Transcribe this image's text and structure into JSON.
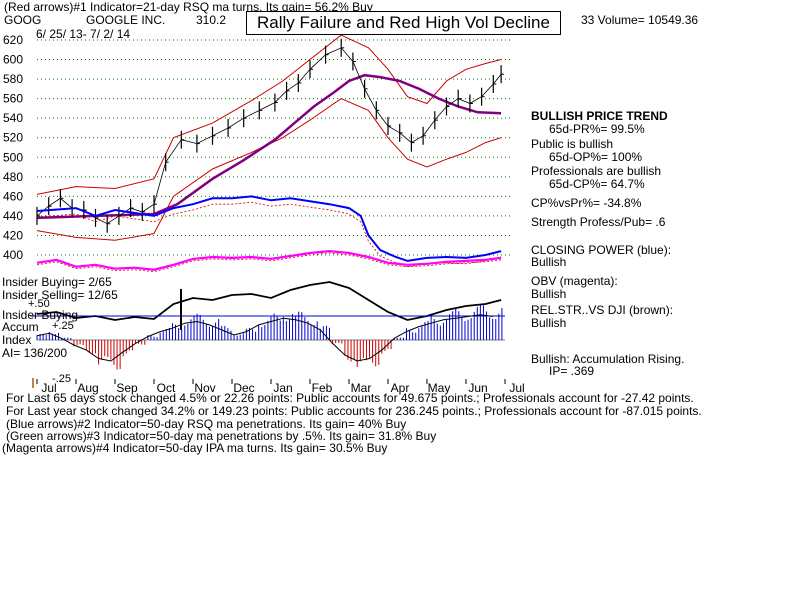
{
  "header": {
    "line1": "(Red arrows)#1 Indicator=21-day RSQ ma turns. Its gain= 56.2% Buy",
    "ticker": "GOOG",
    "company": "GOOGLE INC.",
    "price": "310.2",
    "date_range": "6/ 25/ 13- 7/ 2/ 14",
    "volume_text": "33 Volume= 10549.36",
    "title": "Rally Failure and Red High Vol Decline"
  },
  "right_panel": {
    "trend_title": "BULLISH PRICE TREND",
    "trend_pr": "65d-PR%= 99.5%",
    "public_title": "Public is bullish",
    "public_op": "65d-OP%= 100%",
    "pros_title": "Professionals are bullish",
    "pros_cp": "65d-CP%= 64.7%",
    "cpvspr": "CP%vsPr%= -34.8%",
    "strength": "Strength Profess/Pub= .6",
    "closing_power_title": "CLOSING POWER (blue):",
    "closing_power_val": "Bullish",
    "obv_title": "OBV (magenta):",
    "obv_val": "Bullish",
    "relstr_title": "REL.STR..VS DJI (brown):",
    "relstr_val": "Bullish",
    "accum_title": "Bullish: Accumulation Rising.",
    "accum_ip": "IP= .369"
  },
  "left_labels": {
    "insider_buying": "Insider Buying= 2/65",
    "insider_selling": "Insider Selling= 12/65",
    "insider_buying2": "Insider Buying",
    "accum": "Accum",
    "plus25": "+.25",
    "plus50": "+.50",
    "index": "Index",
    "ai": "AI= 136/200",
    "minus25": "-.25"
  },
  "footer": {
    "line1": "For Last 65 days stock changed 4.5% or 22.26 points: Public accounts for 49.675 points.; Professionals account for -27.42 points.",
    "line2": "For Last year stock changed 34.2% or 149.23 points: Public accounts for 236.245 points.; Professionals account for -87.015 points.",
    "line3": "(Blue arrows)#2 Indicator=50-day RSQ ma penetrations. Its gain= 40% Buy",
    "line4": "(Green arrows)#3 Indicator=50-day ma penetrations by .5%. Its gain= 31.8% Buy",
    "line5": "(Magenta arrows)#4 Indicator=50-day IPA ma turns. Its gain= 30.5% Buy"
  },
  "colors": {
    "price_bars": "#000000",
    "band": "#cc0000",
    "ma": "#800080",
    "closing_power": "#0000ff",
    "obv": "#ff00ff",
    "relstr": "#000000",
    "accum_pos": "#0000cc",
    "accum_neg": "#cc0000",
    "grid": "#008000"
  },
  "chart_data": {
    "type": "line",
    "title": "Rally Failure and Red High Vol Decline",
    "ylim": [
      380,
      620
    ],
    "yticks": [
      620,
      600,
      580,
      560,
      540,
      520,
      500,
      480,
      460,
      440,
      420,
      400
    ],
    "ytick_labels": [
      "620",
      "600",
      "580",
      "560",
      "540",
      "520",
      "500",
      "480",
      "460",
      "440",
      "420",
      "400"
    ],
    "months": [
      "Jul",
      "Aug",
      "Sep",
      "Oct",
      "Nov",
      "Dec",
      "Jan",
      "Feb",
      "Mar",
      "Apr",
      "May",
      "Jun",
      "Jul"
    ],
    "month_index": [
      0,
      1,
      2,
      3,
      4,
      5,
      6,
      7,
      8,
      9,
      10,
      11,
      12
    ],
    "price": [
      [
        0,
        440
      ],
      [
        0.3,
        450
      ],
      [
        0.6,
        458
      ],
      [
        0.9,
        448
      ],
      [
        1.2,
        446
      ],
      [
        1.5,
        438
      ],
      [
        1.8,
        432
      ],
      [
        2.1,
        440
      ],
      [
        2.4,
        448
      ],
      [
        2.7,
        444
      ],
      [
        3.0,
        452
      ],
      [
        3.3,
        495
      ],
      [
        3.7,
        518
      ],
      [
        4.1,
        514
      ],
      [
        4.5,
        522
      ],
      [
        4.9,
        530
      ],
      [
        5.3,
        540
      ],
      [
        5.7,
        548
      ],
      [
        6.1,
        556
      ],
      [
        6.4,
        568
      ],
      [
        6.7,
        576
      ],
      [
        7.0,
        590
      ],
      [
        7.4,
        605
      ],
      [
        7.8,
        612
      ],
      [
        8.1,
        598
      ],
      [
        8.4,
        570
      ],
      [
        8.7,
        548
      ],
      [
        9.0,
        532
      ],
      [
        9.3,
        525
      ],
      [
        9.6,
        515
      ],
      [
        9.9,
        522
      ],
      [
        10.2,
        538
      ],
      [
        10.5,
        552
      ],
      [
        10.8,
        560
      ],
      [
        11.1,
        555
      ],
      [
        11.4,
        562
      ],
      [
        11.7,
        575
      ],
      [
        11.9,
        585
      ]
    ],
    "ma50": [
      [
        0,
        438
      ],
      [
        1.5,
        440
      ],
      [
        3.0,
        442
      ],
      [
        3.6,
        452
      ],
      [
        4.5,
        478
      ],
      [
        5.3,
        497
      ],
      [
        6.1,
        518
      ],
      [
        6.6,
        535
      ],
      [
        7.1,
        552
      ],
      [
        7.6,
        566
      ],
      [
        8.0,
        578
      ],
      [
        8.4,
        584
      ],
      [
        8.8,
        582
      ],
      [
        9.3,
        578
      ],
      [
        9.8,
        570
      ],
      [
        10.3,
        560
      ],
      [
        10.8,
        552
      ],
      [
        11.3,
        546
      ],
      [
        11.9,
        545
      ]
    ],
    "upper_band": [
      [
        0,
        462
      ],
      [
        1,
        470
      ],
      [
        2,
        468
      ],
      [
        3,
        478
      ],
      [
        3.5,
        520
      ],
      [
        4.5,
        535
      ],
      [
        5.5,
        558
      ],
      [
        6.3,
        578
      ],
      [
        7,
        600
      ],
      [
        7.8,
        625
      ],
      [
        8.5,
        612
      ],
      [
        9,
        590
      ],
      [
        9.5,
        562
      ],
      [
        10,
        555
      ],
      [
        10.5,
        578
      ],
      [
        11,
        590
      ],
      [
        11.5,
        596
      ],
      [
        11.9,
        600
      ]
    ],
    "lower_band": [
      [
        0,
        425
      ],
      [
        1,
        418
      ],
      [
        2,
        415
      ],
      [
        3,
        422
      ],
      [
        3.5,
        460
      ],
      [
        4.5,
        488
      ],
      [
        5.5,
        505
      ],
      [
        6.3,
        520
      ],
      [
        7,
        538
      ],
      [
        7.8,
        560
      ],
      [
        8.5,
        548
      ],
      [
        9,
        520
      ],
      [
        9.5,
        498
      ],
      [
        10,
        490
      ],
      [
        10.5,
        498
      ],
      [
        11,
        505
      ],
      [
        11.5,
        515
      ],
      [
        11.9,
        520
      ]
    ],
    "series": [
      {
        "name": "CLOSING POWER (blue)",
        "values": [
          [
            0,
            445
          ],
          [
            1,
            448
          ],
          [
            1.5,
            440
          ],
          [
            2,
            446
          ],
          [
            3,
            440
          ],
          [
            3.5,
            448
          ],
          [
            4,
            452
          ],
          [
            4.5,
            458
          ],
          [
            5,
            458
          ],
          [
            5.5,
            460
          ],
          [
            6,
            456
          ],
          [
            6.5,
            458
          ],
          [
            7,
            455
          ],
          [
            7.5,
            452
          ],
          [
            8,
            448
          ],
          [
            8.3,
            440
          ],
          [
            8.5,
            420
          ],
          [
            8.8,
            405
          ],
          [
            9.2,
            398
          ],
          [
            9.5,
            394
          ],
          [
            10,
            397
          ],
          [
            10.5,
            398
          ],
          [
            11,
            397
          ],
          [
            11.5,
            400
          ],
          [
            11.9,
            404
          ]
        ]
      },
      {
        "name": "OBV (magenta)",
        "values": [
          [
            0,
            392
          ],
          [
            0.5,
            395
          ],
          [
            1,
            388
          ],
          [
            1.5,
            390
          ],
          [
            2,
            386
          ],
          [
            2.5,
            387
          ],
          [
            3,
            385
          ],
          [
            3.5,
            390
          ],
          [
            4,
            396
          ],
          [
            4.5,
            398
          ],
          [
            5,
            397
          ],
          [
            5.5,
            398
          ],
          [
            6,
            396
          ],
          [
            6.5,
            399
          ],
          [
            7,
            402
          ],
          [
            7.5,
            404
          ],
          [
            8,
            402
          ],
          [
            8.5,
            398
          ],
          [
            9,
            392
          ],
          [
            9.5,
            390
          ],
          [
            10,
            391
          ],
          [
            10.5,
            393
          ],
          [
            11,
            394
          ],
          [
            11.5,
            395
          ],
          [
            11.9,
            397
          ]
        ]
      }
    ],
    "rel_str": [
      [
        0,
        336
      ],
      [
        0.5,
        338
      ],
      [
        1,
        332
      ],
      [
        1.5,
        334
      ],
      [
        2,
        330
      ],
      [
        2.5,
        333
      ],
      [
        3,
        331
      ],
      [
        3.5,
        346
      ],
      [
        4,
        352
      ],
      [
        4.5,
        350
      ],
      [
        5,
        355
      ],
      [
        5.5,
        356
      ],
      [
        6,
        352
      ],
      [
        6.5,
        360
      ],
      [
        7,
        365
      ],
      [
        7.5,
        368
      ],
      [
        8,
        362
      ],
      [
        8.5,
        350
      ],
      [
        9,
        338
      ],
      [
        9.5,
        330
      ],
      [
        10,
        334
      ],
      [
        10.5,
        340
      ],
      [
        11,
        344
      ],
      [
        11.5,
        346
      ],
      [
        11.9,
        350
      ]
    ],
    "accumulation": [
      0.05,
      0.08,
      0.02,
      -0.06,
      -0.12,
      -0.22,
      -0.25,
      -0.14,
      -0.04,
      0.04,
      0.1,
      0.14,
      0.2,
      0.22,
      0.18,
      0.12,
      0.06,
      0.1,
      0.18,
      0.22,
      0.26,
      0.24,
      0.2,
      0.12,
      -0.04,
      -0.18,
      -0.25,
      -0.22,
      -0.12,
      0.02,
      0.1,
      0.16,
      0.2,
      0.24,
      0.26,
      0.28,
      0.3,
      0.28
    ]
  }
}
